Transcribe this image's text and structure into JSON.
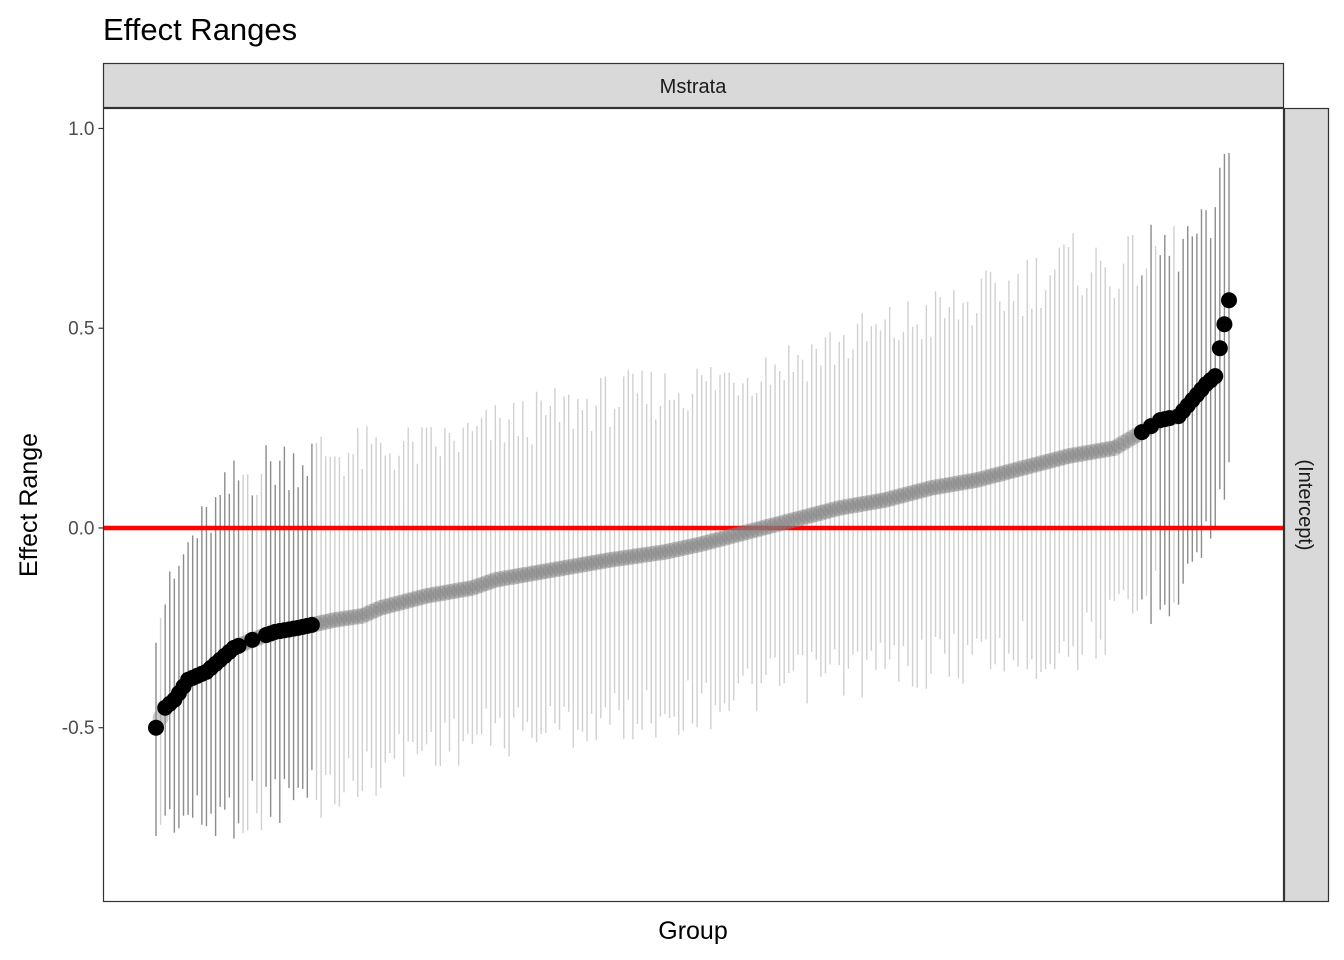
{
  "chart_data": {
    "type": "scatter",
    "title": "Effect Ranges",
    "xlabel": "Group",
    "ylabel": "Effect Range",
    "facet_column_label": "Mstrata",
    "facet_row_label": "(Intercept)",
    "ylim": [
      -0.935,
      1.05
    ],
    "y_ticks": [
      1.0,
      0.5,
      0.0,
      -0.5
    ],
    "y_tick_labels": [
      "1.0",
      "0.5",
      "0.0",
      "-0.5"
    ],
    "reference_line": {
      "y": 0.0,
      "color": "#ff0000"
    },
    "grid": false,
    "x_ticks_shown": false,
    "n_groups": 235,
    "point_color_significant": "#000000",
    "point_color_nonsignificant": "#808080",
    "interval_color_significant": "#8c8c8c",
    "interval_color_nonsignificant": "#d0d0d0",
    "estimate_profile": {
      "description": "sorted point estimates by group rank (rank 1..235), linear between knots",
      "rank": [
        1,
        3,
        5,
        8,
        12,
        15,
        18,
        22,
        27,
        32,
        40,
        46,
        50,
        60,
        70,
        75,
        90,
        100,
        112,
        120,
        130,
        140,
        150,
        160,
        170,
        180,
        190,
        200,
        210,
        216,
        220,
        224,
        227,
        230,
        232,
        233,
        234,
        235
      ],
      "estimate": [
        -0.5,
        -0.45,
        -0.43,
        -0.38,
        -0.36,
        -0.33,
        -0.3,
        -0.28,
        -0.26,
        -0.25,
        -0.23,
        -0.22,
        -0.2,
        -0.17,
        -0.15,
        -0.13,
        -0.1,
        -0.08,
        -0.06,
        -0.04,
        -0.01,
        0.02,
        0.05,
        0.07,
        0.1,
        0.12,
        0.15,
        0.18,
        0.2,
        0.24,
        0.27,
        0.28,
        0.32,
        0.36,
        0.38,
        0.45,
        0.51,
        0.57
      ]
    },
    "interval_halfwidth_profile": {
      "rank": [
        1,
        10,
        20,
        40,
        60,
        100,
        140,
        180,
        200,
        210,
        225,
        230,
        235
      ],
      "halfwidth": [
        0.25,
        0.36,
        0.42,
        0.42,
        0.37,
        0.4,
        0.4,
        0.44,
        0.48,
        0.44,
        0.42,
        0.38,
        0.4
      ]
    },
    "significant_ranks_low": [
      1,
      3,
      4,
      5,
      6,
      7,
      8,
      9,
      10,
      11,
      12,
      13,
      14,
      15,
      16,
      17,
      18,
      19,
      22,
      25,
      26,
      27,
      28,
      29,
      30,
      31,
      32,
      33,
      34,
      35
    ],
    "significant_ranks_high": [
      216,
      218,
      220,
      221,
      222,
      224,
      225,
      226,
      227,
      228,
      229,
      230,
      231,
      232,
      233,
      234,
      235
    ]
  }
}
